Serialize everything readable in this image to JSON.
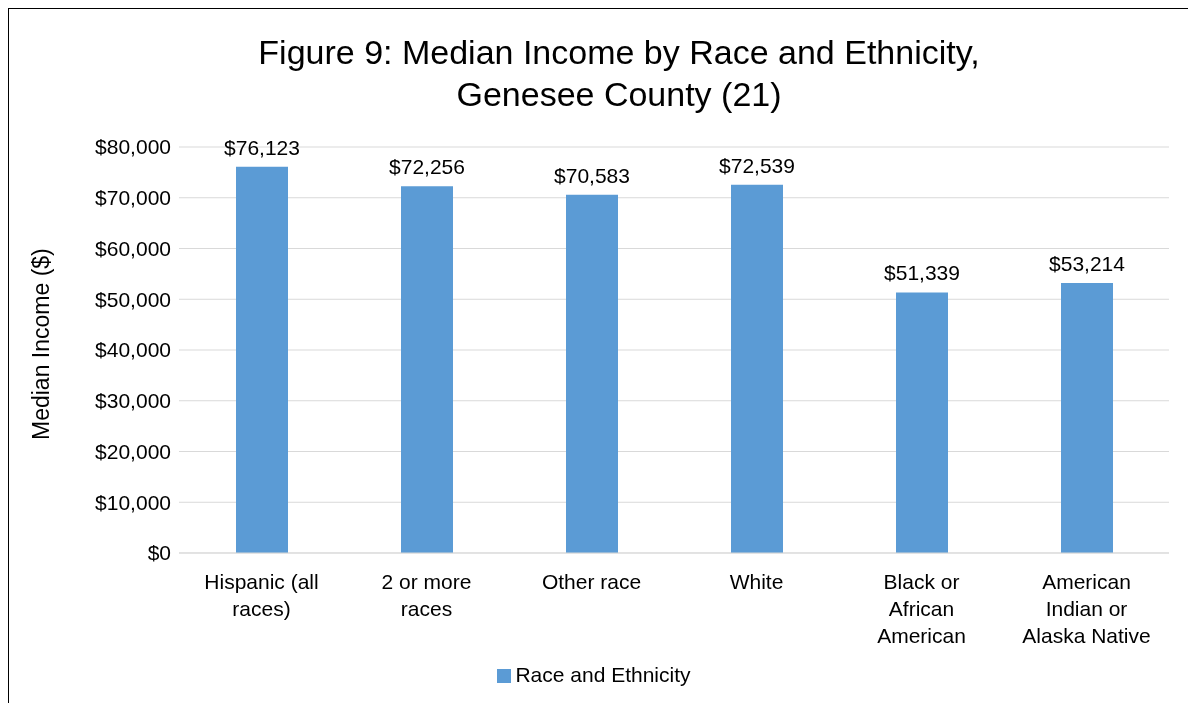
{
  "chart_data": {
    "type": "bar",
    "title": "Figure 9: Median Income by Race and Ethnicity, Genesee County (21)",
    "ylabel": "Median Income ($)",
    "categories": [
      "Hispanic (all races)",
      "2 or more races",
      "Other race",
      "White",
      "Black or African American",
      "American Indian or Alaska Native"
    ],
    "series": [
      {
        "name": "Race and Ethnicity",
        "color": "#5b9bd5",
        "values": [
          76123,
          72256,
          70583,
          72539,
          51339,
          53214
        ],
        "value_labels": [
          "$76,123",
          "$72,256",
          "$70,583",
          "$72,539",
          "$51,339",
          "$53,214"
        ]
      }
    ],
    "ylim": [
      0,
      80000
    ],
    "yticks": [
      {
        "value": 0,
        "label": "$0"
      },
      {
        "value": 10000,
        "label": "$10,000"
      },
      {
        "value": 20000,
        "label": "$20,000"
      },
      {
        "value": 30000,
        "label": "$30,000"
      },
      {
        "value": 40000,
        "label": "$40,000"
      },
      {
        "value": 50000,
        "label": "$50,000"
      },
      {
        "value": 60000,
        "label": "$60,000"
      },
      {
        "value": 70000,
        "label": "$70,000"
      },
      {
        "value": 80000,
        "label": "$80,000"
      }
    ],
    "grid": "y",
    "legend": "bottom"
  }
}
